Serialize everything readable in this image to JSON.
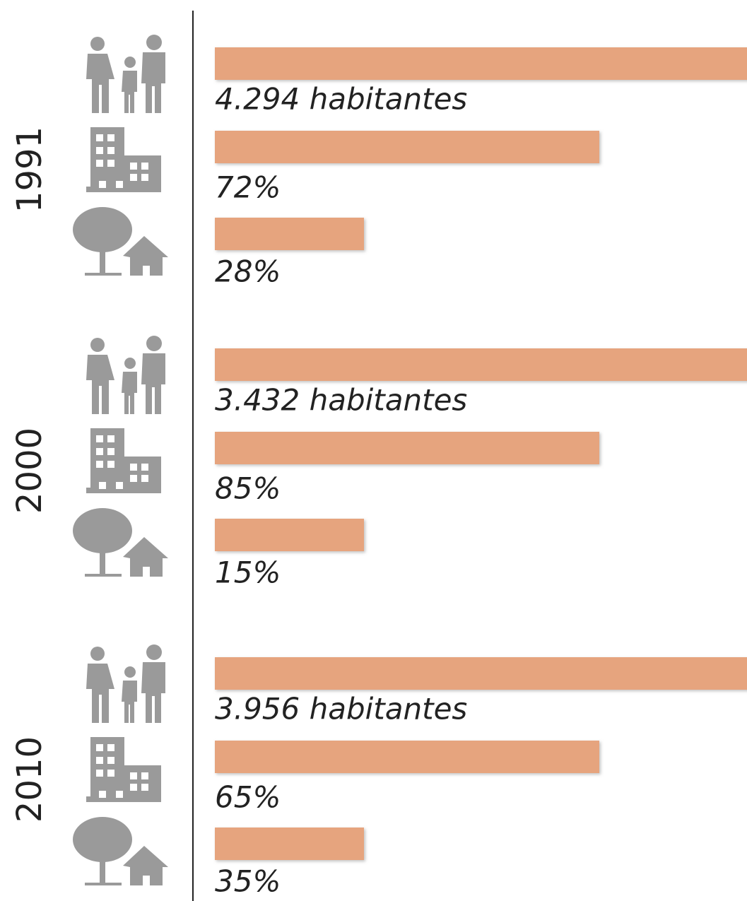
{
  "groups": [
    {
      "year": "1991",
      "rows": [
        "4.294 habitantes",
        "72%",
        "28%"
      ]
    },
    {
      "year": "2000",
      "rows": [
        "3.432 habitantes",
        "85%",
        "15%"
      ]
    },
    {
      "year": "2010",
      "rows": [
        "3.956 habitantes",
        "65%",
        "35%"
      ]
    }
  ]
}
